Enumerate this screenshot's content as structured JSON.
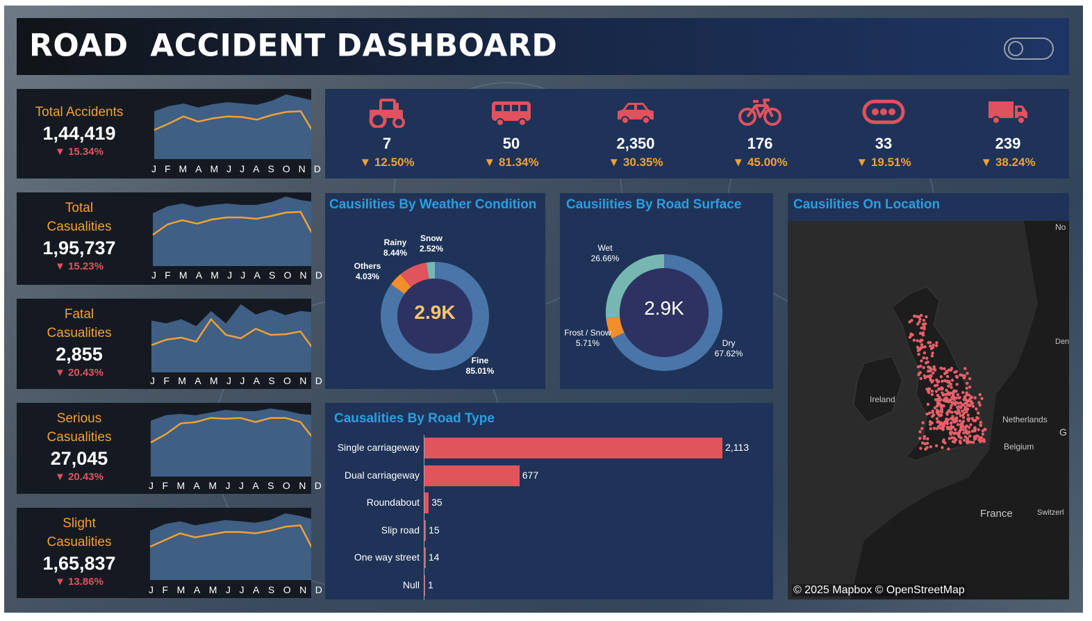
{
  "header": {
    "title": "ROAD  ACCIDENT DASHBOARD"
  },
  "colors": {
    "accent_orange": "#f2a134",
    "accent_red": "#e0525e",
    "panel_navy": "#1f3358",
    "area_fill": "#3f5f84",
    "title_blue": "#2a9fe0"
  },
  "months": [
    "J",
    "F",
    "M",
    "A",
    "M",
    "J",
    "J",
    "A",
    "S",
    "O",
    "N",
    "D"
  ],
  "kpis": [
    {
      "title": "Total Accidents",
      "value": "1,44,419",
      "delta": "15.34%",
      "trend": [
        0.45,
        0.55,
        0.66,
        0.58,
        0.63,
        0.66,
        0.65,
        0.61,
        0.68,
        0.73,
        0.74,
        0.36
      ],
      "area": [
        0.74,
        0.82,
        0.86,
        0.8,
        0.85,
        0.88,
        0.86,
        0.84,
        0.9,
        1.0,
        0.95,
        0.9
      ]
    },
    {
      "title": "Total Casualities",
      "value": "1,95,737",
      "delta": "15.23%",
      "trend": [
        0.45,
        0.6,
        0.66,
        0.61,
        0.67,
        0.7,
        0.7,
        0.68,
        0.72,
        0.77,
        0.78,
        0.38
      ],
      "area": [
        0.76,
        0.86,
        0.9,
        0.85,
        0.88,
        0.9,
        0.88,
        0.88,
        0.92,
        1.0,
        0.95,
        0.92
      ]
    },
    {
      "title": "Fatal Casualities",
      "value": "2,855",
      "delta": "20.43%",
      "trend": [
        0.4,
        0.48,
        0.51,
        0.45,
        0.78,
        0.55,
        0.5,
        0.64,
        0.55,
        0.56,
        0.6,
        0.3
      ],
      "area": [
        0.76,
        0.72,
        0.78,
        0.68,
        0.9,
        0.72,
        1.0,
        0.85,
        0.92,
        0.84,
        0.9,
        0.88
      ]
    },
    {
      "title": "Serious Casualities",
      "value": "27,045",
      "delta": "20.43%",
      "trend": [
        0.5,
        0.62,
        0.78,
        0.8,
        0.86,
        0.85,
        0.86,
        0.8,
        0.86,
        0.86,
        0.8,
        0.52
      ],
      "area": [
        0.82,
        0.9,
        0.92,
        0.9,
        0.94,
        0.98,
        0.96,
        0.96,
        1.0,
        0.97,
        0.92,
        0.9
      ]
    },
    {
      "title": "Slight Casualities",
      "value": "1,65,837",
      "delta": "13.86%",
      "trend": [
        0.5,
        0.6,
        0.7,
        0.64,
        0.68,
        0.72,
        0.72,
        0.7,
        0.74,
        0.8,
        0.82,
        0.38
      ],
      "area": [
        0.74,
        0.84,
        0.88,
        0.82,
        0.86,
        0.9,
        0.88,
        0.86,
        0.9,
        1.0,
        0.96,
        0.9
      ]
    }
  ],
  "vehicles": [
    {
      "icon": "tractor-icon",
      "value": "7",
      "delta": "12.50%"
    },
    {
      "icon": "bus-icon",
      "value": "50",
      "delta": "81.34%"
    },
    {
      "icon": "car-icon",
      "value": "2,350",
      "delta": "30.35%"
    },
    {
      "icon": "bicycle-icon",
      "value": "176",
      "delta": "45.00%"
    },
    {
      "icon": "other-vehicle-icon",
      "value": "33",
      "delta": "19.51%"
    },
    {
      "icon": "truck-icon",
      "value": "239",
      "delta": "38.24%"
    }
  ],
  "weather": {
    "title": "Causilities By Weather Condition",
    "center": "2.9K",
    "segments": [
      {
        "name": "Fine",
        "pct": "85.01%",
        "value": 85.01,
        "color": "#4a75a9"
      },
      {
        "name": "Others",
        "pct": "4.03%",
        "value": 4.03,
        "color": "#f28e2c"
      },
      {
        "name": "Rainy",
        "pct": "8.44%",
        "value": 8.44,
        "color": "#e0545c"
      },
      {
        "name": "Snow",
        "pct": "2.52%",
        "value": 2.52,
        "color": "#76b7b2"
      }
    ]
  },
  "surface": {
    "title": "Causilities By Road Surface",
    "center": "2.9K",
    "segments": [
      {
        "name": "Dry",
        "pct": "67.62%",
        "value": 67.62,
        "color": "#4a75a9"
      },
      {
        "name": "Frost / Snow",
        "pct": "5.71%",
        "value": 5.71,
        "color": "#f28e2c"
      },
      {
        "name": "Wet",
        "pct": "26.66%",
        "value": 26.66,
        "color": "#76b7b2"
      }
    ]
  },
  "chart_data": {
    "type": "bar",
    "title": "Causalities By Road Type",
    "categories": [
      "Single carriageway",
      "Dual carriageway",
      "Roundabout",
      "Slip road",
      "One way street",
      "Null"
    ],
    "values": [
      2113,
      677,
      35,
      15,
      14,
      1
    ],
    "value_labels": [
      "2,113",
      "677",
      "35",
      "15",
      "14",
      "1"
    ],
    "xlim": [
      0,
      2113
    ]
  },
  "map": {
    "title": "Causilities On Location",
    "labels": {
      "ireland": "Ireland",
      "netherlands": "Netherlands",
      "belgium": "Belgium",
      "france": "France",
      "switzerland": "Switzerl",
      "denmark": "Den",
      "norway": "No",
      "germany": "G"
    },
    "attribution": "© 2025 Mapbox © OpenStreetMap"
  }
}
